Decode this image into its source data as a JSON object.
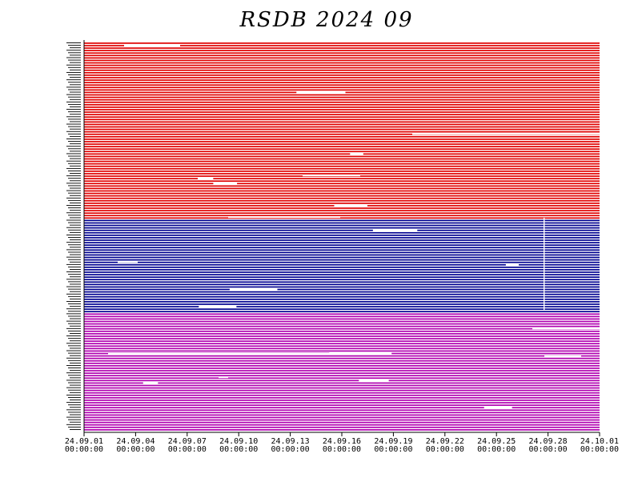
{
  "chart_data": {
    "type": "timeline",
    "title": "RSDB  2024  09",
    "x_ticks": [
      {
        "date": "24.09.01",
        "time": "00:00:00"
      },
      {
        "date": "24.09.04",
        "time": "00:00:00"
      },
      {
        "date": "24.09.07",
        "time": "00:00:00"
      },
      {
        "date": "24.09.10",
        "time": "00:00:00"
      },
      {
        "date": "24.09.13",
        "time": "00:00:00"
      },
      {
        "date": "24.09.16",
        "time": "00:00:00"
      },
      {
        "date": "24.09.19",
        "time": "00:00:00"
      },
      {
        "date": "24.09.22",
        "time": "00:00:00"
      },
      {
        "date": "24.09.25",
        "time": "00:00:00"
      },
      {
        "date": "24.09.28",
        "time": "00:00:00"
      },
      {
        "date": "24.10.01",
        "time": "00:00:00"
      }
    ],
    "x_range": [
      "2024-09-01",
      "2024-10-01"
    ],
    "groups": [
      {
        "color": "#e00000",
        "rows": 72
      },
      {
        "color": "#000090",
        "rows": 38
      },
      {
        "color": "#b000b0",
        "rows": 48
      }
    ]
  }
}
